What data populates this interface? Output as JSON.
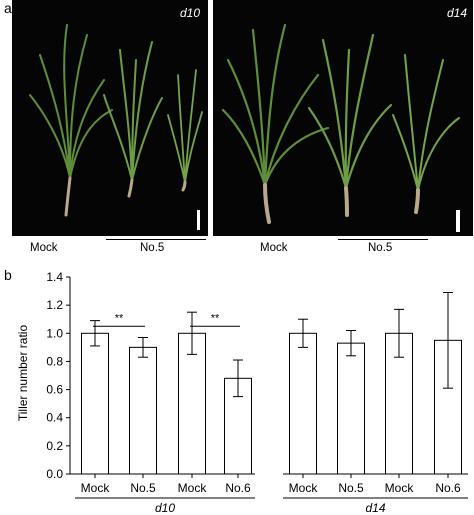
{
  "panel_a": {
    "label": "a",
    "left_photo": {
      "day": "d10",
      "groups": {
        "control": "Mock",
        "treatment": "No.5"
      }
    },
    "right_photo": {
      "day": "d14",
      "groups": {
        "control": "Mock",
        "treatment": "No.5"
      }
    }
  },
  "panel_b": {
    "label": "b"
  },
  "chart_data": {
    "type": "bar",
    "ylabel": "Tiller number ratio",
    "ylim": [
      0,
      1.4
    ],
    "yticks": [
      "0.0",
      "0.2",
      "0.4",
      "0.6",
      "0.8",
      "1.0",
      "1.2",
      "1.4"
    ],
    "categories": [
      "Mock",
      "No.5",
      "Mock",
      "No.6",
      "Mock",
      "No.5",
      "Mock",
      "No.6"
    ],
    "values": [
      1.0,
      0.9,
      1.0,
      0.68,
      1.0,
      0.93,
      1.0,
      0.95
    ],
    "errors": [
      0.09,
      0.07,
      0.15,
      0.13,
      0.1,
      0.09,
      0.17,
      0.34
    ],
    "groups": [
      "d10",
      "d14"
    ],
    "significance": [
      {
        "from": 0,
        "to": 1,
        "y": 1.05,
        "label": "**"
      },
      {
        "from": 2,
        "to": 3,
        "y": 1.05,
        "label": "**"
      }
    ]
  }
}
